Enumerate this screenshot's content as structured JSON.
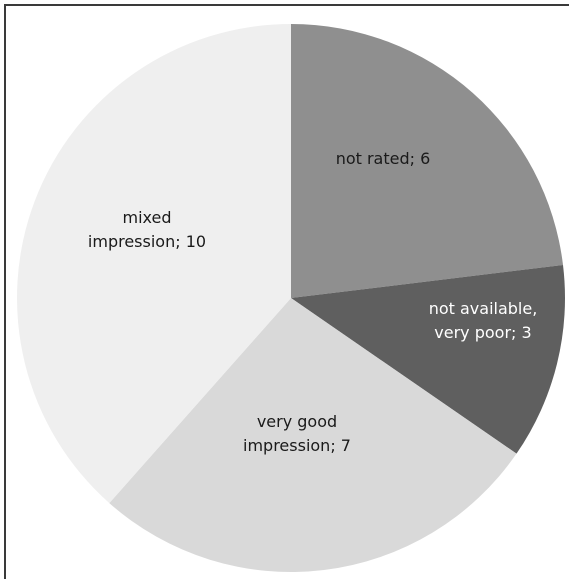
{
  "chart_data": {
    "type": "pie",
    "start_angle_deg": 0,
    "direction": "clockwise",
    "slices": [
      {
        "label": "not rated; 6",
        "value": 6,
        "color": "#8f8f8f",
        "text_color": "#1a1a1a",
        "label_lines": [
          "not rated; 6"
        ]
      },
      {
        "label": "not available, very poor; 3",
        "value": 3,
        "color": "#5f5f5f",
        "text_color": "#ffffff",
        "label_lines": [
          "not available,",
          "very poor; 3"
        ]
      },
      {
        "label": "very good impression; 7",
        "value": 7,
        "color": "#d9d9d9",
        "text_color": "#1a1a1a",
        "label_lines": [
          "very good",
          "impression; 7"
        ]
      },
      {
        "label": "mixed impression; 10",
        "value": 10,
        "color": "#efefef",
        "text_color": "#1a1a1a",
        "label_lines": [
          "mixed",
          "impression; 10"
        ]
      }
    ]
  }
}
